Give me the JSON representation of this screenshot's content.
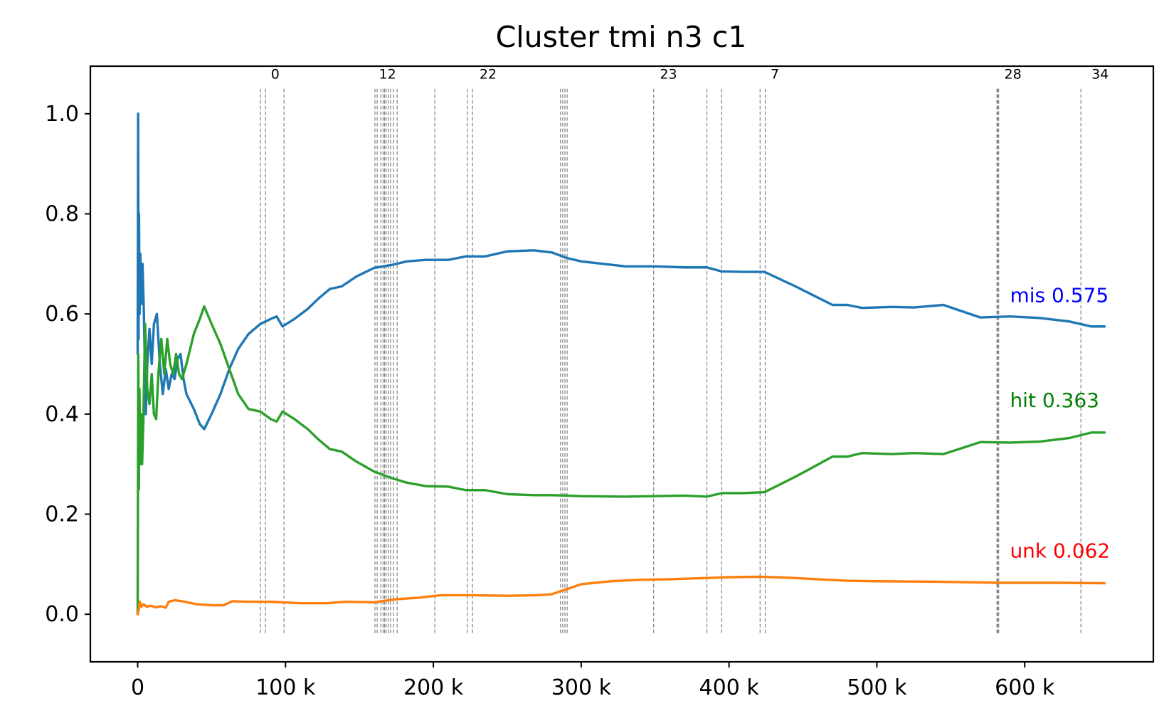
{
  "chart_data": {
    "type": "line",
    "title": "Cluster tmi n3 c1",
    "xlabel": "",
    "ylabel": "",
    "xlim": [
      -32000,
      687000
    ],
    "ylim": [
      -0.095,
      1.095
    ],
    "grid": false,
    "x_ticks": [
      {
        "value": 0,
        "label": "0"
      },
      {
        "value": 100000,
        "label": "100 k"
      },
      {
        "value": 200000,
        "label": "200 k"
      },
      {
        "value": 300000,
        "label": "300 k"
      },
      {
        "value": 400000,
        "label": "400 k"
      },
      {
        "value": 500000,
        "label": "500 k"
      },
      {
        "value": 600000,
        "label": "600 k"
      }
    ],
    "y_ticks": [
      {
        "value": 0.0,
        "label": "0.0"
      },
      {
        "value": 0.2,
        "label": "0.2"
      },
      {
        "value": 0.4,
        "label": "0.4"
      },
      {
        "value": 0.6,
        "label": "0.6"
      },
      {
        "value": 0.8,
        "label": "0.8"
      },
      {
        "value": 1.0,
        "label": "1.0"
      }
    ],
    "vertical_markers": {
      "color": "#808080",
      "x": [
        83000,
        86500,
        99000,
        160500,
        162000,
        164500,
        166000,
        167000,
        168000,
        169500,
        171000,
        173000,
        175500,
        201000,
        223000,
        226500,
        286000,
        287500,
        289000,
        290500,
        349000,
        385000,
        395000,
        421000,
        424500,
        581200,
        581800,
        582400,
        638000
      ],
      "labels": [
        {
          "x": 93000,
          "text": "0"
        },
        {
          "x": 169000,
          "text": "12"
        },
        {
          "x": 237000,
          "text": "22"
        },
        {
          "x": 359000,
          "text": "23"
        },
        {
          "x": 431000,
          "text": "7"
        },
        {
          "x": 592000,
          "text": "28"
        },
        {
          "x": 651000,
          "text": "34"
        }
      ]
    },
    "series": [
      {
        "key": "mis",
        "color": "#1f77b4",
        "points": [
          [
            0,
            0.52
          ],
          [
            300,
            1.0
          ],
          [
            600,
            0.55
          ],
          [
            900,
            0.8
          ],
          [
            1300,
            0.6
          ],
          [
            1800,
            0.72
          ],
          [
            2500,
            0.62
          ],
          [
            3300,
            0.7
          ],
          [
            4200,
            0.6
          ],
          [
            5500,
            0.4
          ],
          [
            6500,
            0.5
          ],
          [
            8000,
            0.57
          ],
          [
            9500,
            0.5
          ],
          [
            11000,
            0.58
          ],
          [
            13000,
            0.6
          ],
          [
            15000,
            0.5
          ],
          [
            17000,
            0.44
          ],
          [
            19000,
            0.49
          ],
          [
            21000,
            0.45
          ],
          [
            23000,
            0.48
          ],
          [
            25000,
            0.47
          ],
          [
            27000,
            0.51
          ],
          [
            29000,
            0.52
          ],
          [
            31000,
            0.47
          ],
          [
            33000,
            0.44
          ],
          [
            38000,
            0.41
          ],
          [
            42000,
            0.38
          ],
          [
            45000,
            0.37
          ],
          [
            50000,
            0.4
          ],
          [
            56000,
            0.44
          ],
          [
            62000,
            0.49
          ],
          [
            68000,
            0.53
          ],
          [
            75000,
            0.56
          ],
          [
            83000,
            0.58
          ],
          [
            90000,
            0.59
          ],
          [
            94000,
            0.595
          ],
          [
            98000,
            0.575
          ],
          [
            106000,
            0.59
          ],
          [
            115000,
            0.61
          ],
          [
            122000,
            0.63
          ],
          [
            130000,
            0.65
          ],
          [
            138000,
            0.655
          ],
          [
            148000,
            0.675
          ],
          [
            160000,
            0.692
          ],
          [
            172000,
            0.698
          ],
          [
            182000,
            0.705
          ],
          [
            195000,
            0.708
          ],
          [
            210000,
            0.708
          ],
          [
            222000,
            0.715
          ],
          [
            235000,
            0.715
          ],
          [
            250000,
            0.725
          ],
          [
            268000,
            0.727
          ],
          [
            280000,
            0.723
          ],
          [
            290000,
            0.712
          ],
          [
            300000,
            0.705
          ],
          [
            315000,
            0.7
          ],
          [
            330000,
            0.695
          ],
          [
            350000,
            0.695
          ],
          [
            370000,
            0.693
          ],
          [
            385000,
            0.693
          ],
          [
            395000,
            0.685
          ],
          [
            410000,
            0.684
          ],
          [
            424000,
            0.684
          ],
          [
            445000,
            0.655
          ],
          [
            470000,
            0.618
          ],
          [
            480000,
            0.618
          ],
          [
            490000,
            0.612
          ],
          [
            510000,
            0.614
          ],
          [
            525000,
            0.613
          ],
          [
            545000,
            0.618
          ],
          [
            570000,
            0.593
          ],
          [
            590000,
            0.595
          ],
          [
            610000,
            0.592
          ],
          [
            630000,
            0.585
          ],
          [
            645000,
            0.575
          ],
          [
            654000,
            0.575
          ]
        ]
      },
      {
        "key": "hit",
        "color": "#2ca02c",
        "points": [
          [
            0,
            0.0
          ],
          [
            400,
            0.52
          ],
          [
            800,
            0.25
          ],
          [
            1200,
            0.45
          ],
          [
            1700,
            0.3
          ],
          [
            2300,
            0.4
          ],
          [
            3000,
            0.3
          ],
          [
            3800,
            0.38
          ],
          [
            5000,
            0.58
          ],
          [
            6500,
            0.45
          ],
          [
            8000,
            0.42
          ],
          [
            9500,
            0.48
          ],
          [
            11000,
            0.4
          ],
          [
            12500,
            0.39
          ],
          [
            14000,
            0.48
          ],
          [
            16000,
            0.55
          ],
          [
            18000,
            0.48
          ],
          [
            20000,
            0.55
          ],
          [
            22000,
            0.5
          ],
          [
            24000,
            0.48
          ],
          [
            26000,
            0.52
          ],
          [
            28000,
            0.48
          ],
          [
            30000,
            0.47
          ],
          [
            33000,
            0.5
          ],
          [
            38000,
            0.56
          ],
          [
            42000,
            0.59
          ],
          [
            45000,
            0.615
          ],
          [
            50000,
            0.58
          ],
          [
            56000,
            0.54
          ],
          [
            62000,
            0.49
          ],
          [
            68000,
            0.44
          ],
          [
            75000,
            0.41
          ],
          [
            83000,
            0.405
          ],
          [
            90000,
            0.39
          ],
          [
            94000,
            0.385
          ],
          [
            98000,
            0.405
          ],
          [
            106000,
            0.39
          ],
          [
            115000,
            0.37
          ],
          [
            122000,
            0.35
          ],
          [
            130000,
            0.33
          ],
          [
            138000,
            0.325
          ],
          [
            148000,
            0.305
          ],
          [
            160000,
            0.285
          ],
          [
            172000,
            0.272
          ],
          [
            182000,
            0.263
          ],
          [
            195000,
            0.256
          ],
          [
            210000,
            0.255
          ],
          [
            222000,
            0.248
          ],
          [
            235000,
            0.248
          ],
          [
            250000,
            0.24
          ],
          [
            268000,
            0.238
          ],
          [
            280000,
            0.238
          ],
          [
            290000,
            0.237
          ],
          [
            300000,
            0.236
          ],
          [
            330000,
            0.235
          ],
          [
            350000,
            0.236
          ],
          [
            370000,
            0.237
          ],
          [
            385000,
            0.235
          ],
          [
            395000,
            0.242
          ],
          [
            410000,
            0.242
          ],
          [
            424000,
            0.244
          ],
          [
            445000,
            0.275
          ],
          [
            470000,
            0.315
          ],
          [
            480000,
            0.315
          ],
          [
            490000,
            0.322
          ],
          [
            510000,
            0.32
          ],
          [
            525000,
            0.322
          ],
          [
            545000,
            0.32
          ],
          [
            570000,
            0.344
          ],
          [
            590000,
            0.343
          ],
          [
            610000,
            0.345
          ],
          [
            630000,
            0.352
          ],
          [
            645000,
            0.363
          ],
          [
            654000,
            0.363
          ]
        ]
      },
      {
        "key": "unk",
        "color": "#ff7f0e",
        "points": [
          [
            0,
            0.0
          ],
          [
            800,
            0.01
          ],
          [
            1500,
            0.025
          ],
          [
            2500,
            0.015
          ],
          [
            4000,
            0.02
          ],
          [
            6000,
            0.015
          ],
          [
            9000,
            0.017
          ],
          [
            12000,
            0.014
          ],
          [
            16000,
            0.016
          ],
          [
            19000,
            0.013
          ],
          [
            21000,
            0.025
          ],
          [
            25000,
            0.028
          ],
          [
            30000,
            0.026
          ],
          [
            40000,
            0.02
          ],
          [
            50000,
            0.018
          ],
          [
            58000,
            0.018
          ],
          [
            64000,
            0.026
          ],
          [
            75000,
            0.025
          ],
          [
            90000,
            0.025
          ],
          [
            110000,
            0.022
          ],
          [
            128000,
            0.022
          ],
          [
            140000,
            0.025
          ],
          [
            160000,
            0.024
          ],
          [
            175000,
            0.03
          ],
          [
            190000,
            0.033
          ],
          [
            205000,
            0.038
          ],
          [
            225000,
            0.038
          ],
          [
            250000,
            0.037
          ],
          [
            270000,
            0.038
          ],
          [
            280000,
            0.04
          ],
          [
            290000,
            0.05
          ],
          [
            300000,
            0.06
          ],
          [
            320000,
            0.066
          ],
          [
            340000,
            0.069
          ],
          [
            360000,
            0.07
          ],
          [
            380000,
            0.072
          ],
          [
            400000,
            0.074
          ],
          [
            420000,
            0.075
          ],
          [
            440000,
            0.073
          ],
          [
            460000,
            0.07
          ],
          [
            480000,
            0.067
          ],
          [
            500000,
            0.066
          ],
          [
            540000,
            0.065
          ],
          [
            580000,
            0.063
          ],
          [
            620000,
            0.063
          ],
          [
            654000,
            0.062
          ]
        ]
      }
    ],
    "end_labels": [
      {
        "series": "mis",
        "text": "mis 0.575",
        "color": "#0000ff",
        "y": 0.624
      },
      {
        "series": "hit",
        "text": "hit 0.363",
        "color": "#008000",
        "y": 0.414
      },
      {
        "series": "unk",
        "text": "unk 0.062",
        "color": "#ff0000",
        "y": 0.113
      }
    ]
  }
}
